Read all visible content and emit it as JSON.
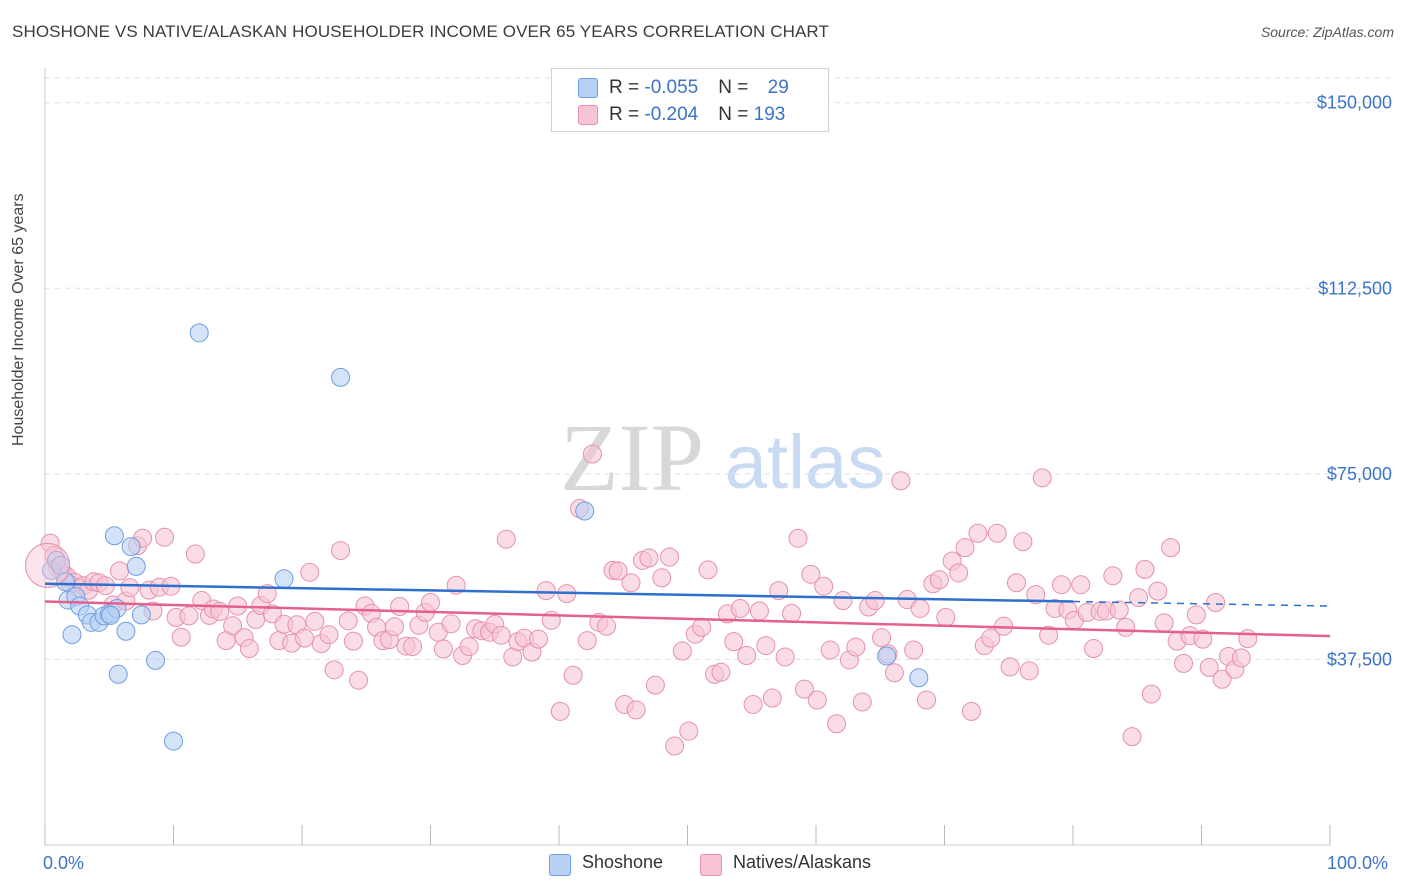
{
  "title": "SHOSHONE VS NATIVE/ALASKAN HOUSEHOLDER INCOME OVER 65 YEARS CORRELATION CHART",
  "source": "Source: ZipAtlas.com",
  "watermark": {
    "zip": "ZIP",
    "atlas": "atlas"
  },
  "legend": {
    "rows": [
      {
        "r_label": "R = ",
        "r_value": "-0.055",
        "n_label": "N = ",
        "n_value": "29"
      },
      {
        "r_label": "R = ",
        "r_value": "-0.204",
        "n_label": "N = ",
        "n_value": "193"
      }
    ]
  },
  "colors": {
    "shoshone_fill": "#b8d0f3",
    "shoshone_stroke": "#6f9ee0",
    "shoshone_line": "#2f6fd0",
    "natives_fill": "#f7c4d4",
    "natives_stroke": "#e691ae",
    "natives_line": "#e4608d",
    "tick_text": "#3b73c9",
    "grid": "#dddddd"
  },
  "chart_data": {
    "type": "scatter",
    "xlabel": "",
    "ylabel": "Householder Income Over 65 years",
    "xlim": [
      0,
      100
    ],
    "ylim": [
      0,
      155000
    ],
    "x_tick_labels": [
      "0.0%",
      "100.0%"
    ],
    "y_ticks": [
      37500,
      75000,
      112500,
      150000
    ],
    "y_tick_labels": [
      "$37,500",
      "$75,000",
      "$112,500",
      "$150,000"
    ],
    "series": [
      {
        "name": "Shoshone",
        "trend": {
          "x_start": 0,
          "y_start": 52800,
          "x_solid_end": 80,
          "y_solid_end": 49200,
          "x_dash_end": 100,
          "y_dash_end": 48300
        },
        "points": [
          [
            0.5,
            55500
          ],
          [
            0.9,
            57500
          ],
          [
            1.2,
            56500
          ],
          [
            1.6,
            53200
          ],
          [
            1.8,
            49500
          ],
          [
            2.1,
            42500
          ],
          [
            2.4,
            50200
          ],
          [
            2.7,
            48300
          ],
          [
            3.3,
            46500
          ],
          [
            3.6,
            45000
          ],
          [
            4.2,
            45000
          ],
          [
            4.6,
            46300
          ],
          [
            5.0,
            46700
          ],
          [
            5.6,
            47800
          ],
          [
            5.1,
            46400
          ],
          [
            5.4,
            62500
          ],
          [
            6.3,
            43200
          ],
          [
            6.7,
            60300
          ],
          [
            7.1,
            56300
          ],
          [
            7.5,
            46500
          ],
          [
            5.7,
            34500
          ],
          [
            8.6,
            37300
          ],
          [
            10.0,
            21000
          ],
          [
            12.0,
            103500
          ],
          [
            18.6,
            53800
          ],
          [
            23.0,
            94500
          ],
          [
            42.0,
            67500
          ],
          [
            65.5,
            38200
          ],
          [
            68.0,
            33800
          ]
        ]
      },
      {
        "name": "Natives/Alaskans",
        "trend": {
          "x_start": 0,
          "y_start": 49200,
          "x_end": 100,
          "y_end": 42200
        },
        "points": [
          [
            0.4,
            61000
          ],
          [
            0.7,
            58500
          ],
          [
            1.0,
            56000
          ],
          [
            1.4,
            55000
          ],
          [
            1.7,
            54300
          ],
          [
            2.0,
            52600
          ],
          [
            2.3,
            53100
          ],
          [
            2.6,
            51900
          ],
          [
            3.0,
            52400
          ],
          [
            3.4,
            51500
          ],
          [
            3.8,
            53200
          ],
          [
            4.2,
            53000
          ],
          [
            4.7,
            52400
          ],
          [
            5.3,
            48500
          ],
          [
            5.8,
            55400
          ],
          [
            6.3,
            49300
          ],
          [
            6.6,
            52000
          ],
          [
            7.2,
            60500
          ],
          [
            7.6,
            62000
          ],
          [
            8.1,
            51500
          ],
          [
            8.4,
            47300
          ],
          [
            8.9,
            52100
          ],
          [
            9.3,
            62200
          ],
          [
            9.8,
            52300
          ],
          [
            10.2,
            46000
          ],
          [
            10.6,
            42000
          ],
          [
            11.2,
            46300
          ],
          [
            11.7,
            58800
          ],
          [
            12.2,
            49400
          ],
          [
            12.8,
            46400
          ],
          [
            13.1,
            47700
          ],
          [
            13.6,
            47200
          ],
          [
            14.1,
            41300
          ],
          [
            14.6,
            44300
          ],
          [
            15.0,
            48300
          ],
          [
            15.5,
            41900
          ],
          [
            15.9,
            39700
          ],
          [
            16.4,
            45600
          ],
          [
            16.8,
            48400
          ],
          [
            17.3,
            50800
          ],
          [
            17.7,
            46700
          ],
          [
            18.2,
            41300
          ],
          [
            18.6,
            44600
          ],
          [
            19.2,
            40800
          ],
          [
            19.6,
            44500
          ],
          [
            20.2,
            41800
          ],
          [
            20.6,
            55100
          ],
          [
            21.0,
            45200
          ],
          [
            21.5,
            40700
          ],
          [
            22.1,
            42500
          ],
          [
            22.5,
            35400
          ],
          [
            23.0,
            59500
          ],
          [
            23.6,
            45300
          ],
          [
            24.0,
            41200
          ],
          [
            24.4,
            33300
          ],
          [
            24.9,
            48300
          ],
          [
            25.4,
            46800
          ],
          [
            25.8,
            44000
          ],
          [
            26.3,
            41300
          ],
          [
            26.8,
            41500
          ],
          [
            27.2,
            44100
          ],
          [
            27.6,
            48200
          ],
          [
            28.1,
            40200
          ],
          [
            28.6,
            40100
          ],
          [
            29.1,
            44400
          ],
          [
            29.6,
            47000
          ],
          [
            30.0,
            49000
          ],
          [
            30.6,
            43000
          ],
          [
            31.0,
            39600
          ],
          [
            31.6,
            44700
          ],
          [
            32.0,
            52500
          ],
          [
            32.5,
            38300
          ],
          [
            33.0,
            40100
          ],
          [
            33.5,
            43700
          ],
          [
            34.0,
            43300
          ],
          [
            34.6,
            43000
          ],
          [
            35.0,
            44600
          ],
          [
            35.5,
            42400
          ],
          [
            35.9,
            61800
          ],
          [
            36.4,
            38000
          ],
          [
            36.8,
            41100
          ],
          [
            37.3,
            41800
          ],
          [
            37.9,
            39000
          ],
          [
            38.4,
            41600
          ],
          [
            39.0,
            51400
          ],
          [
            39.4,
            45400
          ],
          [
            40.1,
            27000
          ],
          [
            40.6,
            50800
          ],
          [
            41.1,
            34300
          ],
          [
            41.6,
            68000
          ],
          [
            42.2,
            41300
          ],
          [
            42.6,
            79000
          ],
          [
            43.1,
            45000
          ],
          [
            43.7,
            44200
          ],
          [
            44.2,
            55500
          ],
          [
            44.6,
            55400
          ],
          [
            45.1,
            28400
          ],
          [
            45.6,
            53000
          ],
          [
            46.0,
            27300
          ],
          [
            46.5,
            57500
          ],
          [
            47.0,
            58000
          ],
          [
            47.5,
            32300
          ],
          [
            48.0,
            54000
          ],
          [
            48.6,
            58200
          ],
          [
            49.0,
            20000
          ],
          [
            49.6,
            39200
          ],
          [
            50.1,
            23000
          ],
          [
            50.6,
            42600
          ],
          [
            51.1,
            44000
          ],
          [
            51.6,
            55600
          ],
          [
            52.1,
            34500
          ],
          [
            52.6,
            34900
          ],
          [
            53.1,
            46700
          ],
          [
            53.6,
            41100
          ],
          [
            54.1,
            47800
          ],
          [
            54.6,
            38300
          ],
          [
            55.1,
            28400
          ],
          [
            55.6,
            47300
          ],
          [
            56.1,
            40300
          ],
          [
            56.6,
            29700
          ],
          [
            57.1,
            51400
          ],
          [
            57.6,
            38000
          ],
          [
            58.1,
            46800
          ],
          [
            58.6,
            62000
          ],
          [
            59.1,
            31500
          ],
          [
            59.6,
            54700
          ],
          [
            60.1,
            29300
          ],
          [
            60.6,
            52300
          ],
          [
            61.1,
            39400
          ],
          [
            61.6,
            24500
          ],
          [
            62.1,
            49400
          ],
          [
            62.6,
            37400
          ],
          [
            63.1,
            40000
          ],
          [
            63.6,
            28900
          ],
          [
            64.1,
            48100
          ],
          [
            64.6,
            49400
          ],
          [
            65.1,
            41900
          ],
          [
            65.6,
            38600
          ],
          [
            66.1,
            34800
          ],
          [
            66.6,
            73600
          ],
          [
            67.1,
            49600
          ],
          [
            67.6,
            39400
          ],
          [
            68.1,
            47800
          ],
          [
            68.6,
            29300
          ],
          [
            69.1,
            52800
          ],
          [
            69.6,
            53600
          ],
          [
            70.1,
            46000
          ],
          [
            70.6,
            57400
          ],
          [
            71.1,
            55000
          ],
          [
            71.6,
            60100
          ],
          [
            72.1,
            27000
          ],
          [
            72.6,
            63000
          ],
          [
            73.1,
            40300
          ],
          [
            73.6,
            41800
          ],
          [
            74.1,
            63000
          ],
          [
            74.6,
            44200
          ],
          [
            75.1,
            36000
          ],
          [
            75.6,
            53000
          ],
          [
            76.1,
            61300
          ],
          [
            76.6,
            35200
          ],
          [
            77.1,
            50600
          ],
          [
            77.6,
            74200
          ],
          [
            78.1,
            42400
          ],
          [
            78.6,
            47800
          ],
          [
            79.1,
            52600
          ],
          [
            79.6,
            47500
          ],
          [
            80.1,
            45400
          ],
          [
            80.6,
            52600
          ],
          [
            81.1,
            47000
          ],
          [
            81.6,
            39700
          ],
          [
            82.1,
            47200
          ],
          [
            82.6,
            47300
          ],
          [
            83.1,
            54400
          ],
          [
            83.6,
            47500
          ],
          [
            84.1,
            44000
          ],
          [
            84.6,
            21900
          ],
          [
            85.1,
            50000
          ],
          [
            85.6,
            55700
          ],
          [
            86.1,
            30500
          ],
          [
            86.6,
            51300
          ],
          [
            87.1,
            44900
          ],
          [
            87.6,
            60100
          ],
          [
            88.1,
            41200
          ],
          [
            88.6,
            36700
          ],
          [
            89.1,
            42300
          ],
          [
            89.6,
            46500
          ],
          [
            90.1,
            41600
          ],
          [
            90.6,
            35900
          ],
          [
            91.1,
            49000
          ],
          [
            91.6,
            33500
          ],
          [
            92.1,
            38100
          ],
          [
            92.6,
            35500
          ],
          [
            93.1,
            37800
          ],
          [
            93.6,
            41700
          ]
        ]
      }
    ]
  },
  "bottom_legend": {
    "items": [
      "Shoshone",
      "Natives/Alaskans"
    ]
  }
}
